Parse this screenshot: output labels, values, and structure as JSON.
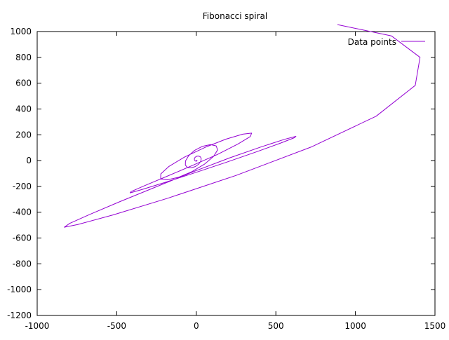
{
  "chart_data": {
    "type": "line",
    "title": "Fibonacci spiral",
    "xlabel": "",
    "ylabel": "",
    "xlim": [
      -1000,
      1500
    ],
    "ylim": [
      -1200,
      1000
    ],
    "x_ticks": [
      -1000,
      -500,
      0,
      500,
      1000,
      1500
    ],
    "y_ticks": [
      -1200,
      -1000,
      -800,
      -600,
      -400,
      -200,
      0,
      200,
      400,
      600,
      800,
      1000
    ],
    "x_tick_labels": [
      "-1000",
      "-500",
      "0",
      "500",
      "1000",
      "1500"
    ],
    "y_tick_labels": [
      "-1200",
      "-1000",
      "-800",
      "-600",
      "-400",
      "-200",
      "0",
      "200",
      "400",
      "600",
      "800",
      "1000"
    ],
    "grid": false,
    "legend_position": "top-right",
    "series": [
      {
        "name": "Data points",
        "color": "#9400d3",
        "x": [
          0,
          3,
          5,
          3,
          -2,
          -8,
          -12,
          -12,
          -7,
          3,
          15,
          26,
          31,
          28,
          15,
          -6,
          -32,
          -55,
          -69,
          -68,
          -48,
          -10,
          39,
          89,
          125,
          134,
          109,
          51,
          -28,
          -111,
          -182,
          -224,
          -223,
          -172,
          -73,
          58,
          186,
          292,
          348,
          339,
          263,
          133,
          -30,
          -195,
          -331,
          -410,
          -416,
          -344,
          -199,
          -14,
          186,
          375,
          527,
          616,
          626,
          555,
          412,
          212,
          -16,
          -252,
          -480,
          -670,
          -796,
          -830,
          -747,
          -524,
          -180,
          249,
          720,
          1130,
          1376,
          1406,
          1227,
          887
        ],
        "y": [
          0,
          3,
          0,
          -4,
          -5,
          -1,
          6,
          16,
          26,
          34,
          35,
          29,
          15,
          -5,
          -27,
          -46,
          -56,
          -54,
          -35,
          -3,
          38,
          80,
          111,
          124,
          114,
          83,
          33,
          -28,
          -86,
          -129,
          -149,
          -140,
          -103,
          -45,
          28,
          104,
          166,
          205,
          213,
          186,
          129,
          48,
          -41,
          -127,
          -197,
          -240,
          -250,
          -225,
          -170,
          -96,
          -14,
          67,
          134,
          177,
          188,
          165,
          108,
          22,
          -85,
          -203,
          -318,
          -417,
          -487,
          -516,
          -496,
          -421,
          -292,
          -115,
          104,
          344,
          583,
          800,
          966,
          1054
        ]
      }
    ]
  }
}
